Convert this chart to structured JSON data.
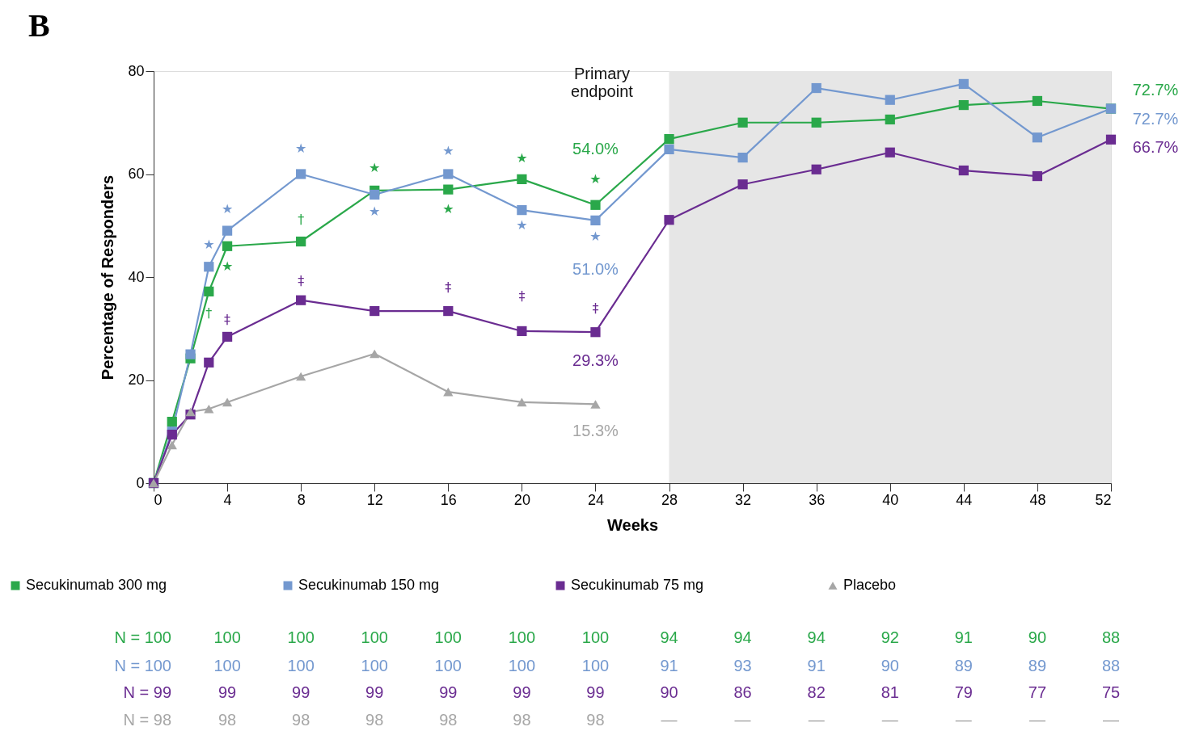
{
  "chart_data": {
    "type": "line",
    "title": "B",
    "xlabel": "Weeks",
    "ylabel": "Percentage of Responders",
    "x": [
      0,
      1,
      2,
      3,
      4,
      8,
      12,
      16,
      20,
      24,
      28,
      32,
      36,
      40,
      44,
      48,
      52
    ],
    "xlim": [
      0,
      52
    ],
    "xticks": [
      0,
      4,
      8,
      12,
      16,
      20,
      24,
      28,
      32,
      36,
      40,
      44,
      48,
      52
    ],
    "ylim": [
      0,
      80
    ],
    "yticks": [
      0,
      20,
      40,
      60,
      80
    ],
    "legend": "bottom",
    "series": [
      {
        "name": "Secukinumab 300 mg",
        "color": "#2aa84a",
        "marker": "square",
        "values": [
          0,
          11.9,
          24.2,
          37.2,
          46,
          46.9,
          56.8,
          57,
          59,
          54.0,
          66.8,
          70,
          70,
          70.6,
          73.4,
          74.2,
          72.7
        ],
        "value_labels": [
          null,
          null,
          null,
          null,
          null,
          null,
          null,
          null,
          null,
          "54.0%",
          null,
          null,
          null,
          null,
          null,
          null,
          "72.7%"
        ]
      },
      {
        "name": "Secukinumab 150 mg",
        "color": "#7398cf",
        "marker": "square",
        "values": [
          0,
          10,
          25,
          42,
          49,
          60,
          56,
          60,
          53,
          51.0,
          64.8,
          63.2,
          76.7,
          74.4,
          77.5,
          67.1,
          72.7
        ],
        "value_labels": [
          null,
          null,
          null,
          null,
          null,
          null,
          null,
          null,
          null,
          "51.0%",
          null,
          null,
          null,
          null,
          null,
          null,
          "72.7%"
        ]
      },
      {
        "name": "Secukinumab 75 mg",
        "color": "#6a2c91",
        "marker": "square",
        "values": [
          0,
          9.4,
          13.3,
          23.4,
          28.4,
          35.5,
          33.4,
          33.4,
          29.5,
          29.3,
          51.1,
          58,
          60.9,
          64.2,
          60.7,
          59.6,
          66.7
        ],
        "value_labels": [
          null,
          null,
          null,
          null,
          null,
          null,
          null,
          null,
          null,
          "29.3%",
          null,
          null,
          null,
          null,
          null,
          null,
          "66.7%"
        ]
      },
      {
        "name": "Placebo",
        "color": "#a6a6a6",
        "marker": "triangle",
        "x": [
          0,
          1,
          2,
          3,
          4,
          8,
          12,
          16,
          20,
          24
        ],
        "values": [
          0,
          7.4,
          13.8,
          14.4,
          15.7,
          20.7,
          25.1,
          17.7,
          15.7,
          15.3
        ],
        "value_labels": [
          null,
          null,
          null,
          null,
          null,
          null,
          null,
          null,
          null,
          "15.3%"
        ]
      }
    ],
    "bands": [
      {
        "axis": "x",
        "from": 28,
        "to": 52,
        "color": "#e6e6e6"
      }
    ],
    "annotations": [
      "Primary endpoint",
      "N = 100 100 100 100 100 100 100 94 94 94 92 91 90 88",
      "N = 100 100 100 100 100 100 100 91 93 91 90 89 89 88",
      "N = 99 99 99 99 99 99 99 90 86 82 81 79 77 75",
      "N = 98 98 98 98 98 98 98 — — — — — — —",
      {
        "text": "★",
        "x": 3,
        "y": 42
      },
      {
        "text": "★",
        "x": 4,
        "y": 49
      },
      {
        "text": "★",
        "x": 8,
        "y": 60
      },
      {
        "text": "★",
        "x": 12,
        "y": 56
      },
      {
        "text": "★",
        "x": 16,
        "y": 60
      },
      {
        "text": "★",
        "x": 20,
        "y": 53
      },
      {
        "text": "★",
        "x": 24,
        "y": 51.0
      },
      {
        "text": "★",
        "x": 4,
        "y": 46
      },
      {
        "text": "★",
        "x": 12,
        "y": 56.8
      },
      {
        "text": "★",
        "x": 16,
        "y": 57
      },
      {
        "text": "★",
        "x": 20,
        "y": 59
      },
      {
        "text": "★",
        "x": 24,
        "y": 54.0
      },
      {
        "text": "†",
        "x": 3,
        "y": 37.2
      },
      {
        "text": "†",
        "x": 8,
        "y": 46.9
      },
      {
        "text": "‡",
        "x": 4,
        "y": 28.4
      },
      {
        "text": "‡",
        "x": 8,
        "y": 35.5
      },
      {
        "text": "‡",
        "x": 16,
        "y": 33.4
      },
      {
        "text": "‡",
        "x": 20,
        "y": 29.5
      },
      {
        "text": "‡",
        "x": 24,
        "y": 29.3
      }
    ]
  }
}
